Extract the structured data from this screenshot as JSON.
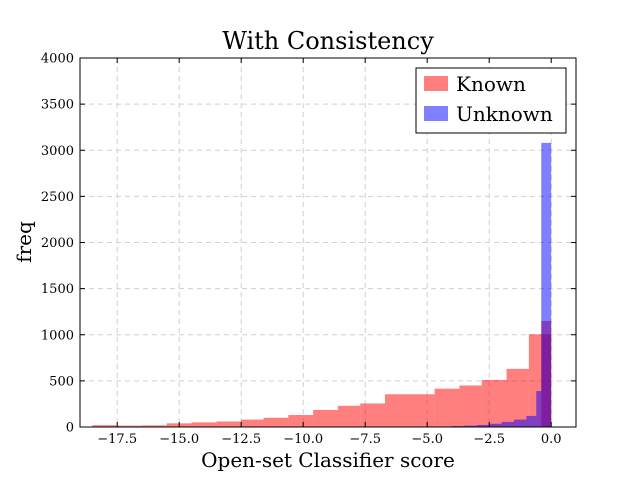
{
  "chart_data": {
    "type": "histogram",
    "title": "With Consistency",
    "xlabel": "Open-set Classifier score",
    "ylabel": "freq",
    "xlim": [
      -19.0,
      1.0
    ],
    "ylim": [
      0,
      4000
    ],
    "xticks": [
      -17.5,
      -15.0,
      -12.5,
      -10.0,
      -7.5,
      -5.0,
      -2.5,
      0.0
    ],
    "xtick_labels": [
      "−17.5",
      "−15.0",
      "−12.5",
      "−10.0",
      "−7.5",
      "−5.0",
      "−2.5",
      "0.0"
    ],
    "yticks": [
      0,
      500,
      1000,
      1500,
      2000,
      2500,
      3000,
      3500,
      4000
    ],
    "ytick_labels": [
      "0",
      "500",
      "1000",
      "1500",
      "2000",
      "2500",
      "3000",
      "3500",
      "4000"
    ],
    "grid": true,
    "legend_position": "top-right",
    "series": [
      {
        "name": "Known",
        "color": "#ff0000",
        "alpha": 0.5,
        "bins": [
          [
            -18.5,
            -17.5,
            20
          ],
          [
            -17.5,
            -16.5,
            15
          ],
          [
            -16.5,
            -15.5,
            18
          ],
          [
            -15.5,
            -14.5,
            40
          ],
          [
            -14.5,
            -13.5,
            50
          ],
          [
            -13.5,
            -12.5,
            60
          ],
          [
            -12.5,
            -11.6,
            80
          ],
          [
            -11.6,
            -10.6,
            100
          ],
          [
            -10.6,
            -9.6,
            130
          ],
          [
            -9.6,
            -8.6,
            185
          ],
          [
            -8.6,
            -7.7,
            230
          ],
          [
            -7.7,
            -6.7,
            255
          ],
          [
            -6.7,
            -4.7,
            355
          ],
          [
            -4.7,
            -3.7,
            415
          ],
          [
            -3.7,
            -2.8,
            450
          ],
          [
            -2.8,
            -1.8,
            510
          ],
          [
            -1.8,
            -0.9,
            630
          ],
          [
            -0.9,
            0.0,
            1005
          ],
          [
            -0.4,
            0.0,
            1150
          ]
        ]
      },
      {
        "name": "Unknown",
        "color": "#0000ff",
        "alpha": 0.5,
        "bins": [
          [
            -4.0,
            -3.5,
            10
          ],
          [
            -3.5,
            -3.0,
            15
          ],
          [
            -3.0,
            -2.5,
            22
          ],
          [
            -2.5,
            -2.0,
            35
          ],
          [
            -2.0,
            -1.5,
            55
          ],
          [
            -1.5,
            -1.0,
            80
          ],
          [
            -1.0,
            -0.6,
            120
          ],
          [
            -0.6,
            -0.4,
            390
          ],
          [
            -0.4,
            0.0,
            3080
          ]
        ]
      }
    ]
  }
}
